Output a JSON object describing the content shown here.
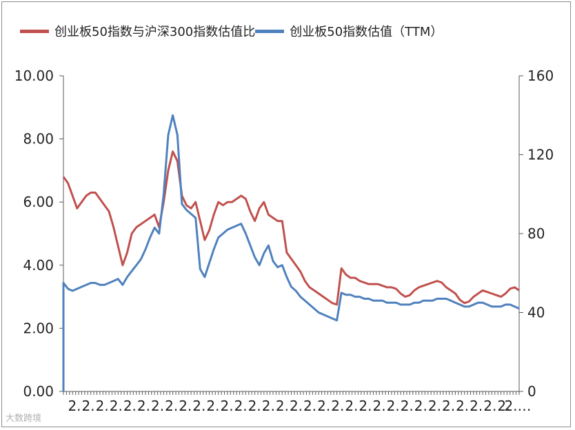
{
  "chart_data": {
    "type": "line",
    "title": "",
    "legend_position": "top",
    "grid": false,
    "x_tick_labels": [
      "2.",
      "2.",
      "2.",
      "2.",
      "2.",
      "2.",
      "2.",
      "2.",
      "2.",
      "2.",
      "2.",
      "2.",
      "2.",
      "2.",
      "2.",
      "2.",
      "2.",
      "2.",
      "2.",
      "2.",
      "2.",
      "2.",
      "2.",
      "2.",
      "2.",
      "2.",
      "2.",
      "2.",
      "2.",
      "2.",
      "2.",
      "2.",
      "2.…"
    ],
    "y_left": {
      "range": [
        0,
        10
      ],
      "ticks": [
        "0.00",
        "2.00",
        "4.00",
        "6.00",
        "8.00",
        "10.00"
      ]
    },
    "y_right": {
      "range": [
        0,
        160
      ],
      "ticks": [
        "0",
        "40",
        "80",
        "120",
        "160"
      ]
    },
    "series": [
      {
        "name": "创业板50指数与沪深300指数估值比",
        "axis": "left",
        "color": "#c0504d",
        "x": [
          0,
          1,
          2,
          3,
          4,
          5,
          6,
          7,
          8,
          9,
          10,
          11,
          12,
          13,
          14,
          15,
          16,
          17,
          18,
          19,
          20,
          21,
          22,
          23,
          24,
          25,
          26,
          27,
          28,
          29,
          30,
          31,
          32,
          33,
          34,
          35,
          36,
          37,
          38,
          39,
          40,
          41,
          42,
          43,
          44,
          45,
          46,
          47,
          48,
          49,
          50,
          51,
          52,
          53,
          54,
          55,
          56,
          57,
          58,
          59,
          60,
          61,
          62,
          63,
          64,
          65,
          66,
          67,
          68,
          69,
          70,
          71,
          72,
          73,
          74,
          75,
          76,
          77,
          78,
          79,
          80,
          81,
          82,
          83,
          84,
          85,
          86,
          87,
          88,
          89,
          90,
          91,
          92,
          93,
          94,
          95,
          96,
          97,
          98,
          99,
          100
        ],
        "values": [
          6.8,
          6.6,
          6.2,
          5.8,
          6.0,
          6.2,
          6.3,
          6.3,
          6.1,
          5.9,
          5.7,
          5.2,
          4.6,
          4.0,
          4.4,
          5.0,
          5.2,
          5.3,
          5.4,
          5.5,
          5.6,
          5.2,
          6.0,
          7.0,
          7.6,
          7.3,
          6.2,
          5.9,
          5.8,
          6.0,
          5.4,
          4.8,
          5.1,
          5.6,
          6.0,
          5.9,
          6.0,
          6.0,
          6.1,
          6.2,
          6.1,
          5.7,
          5.4,
          5.8,
          6.0,
          5.6,
          5.5,
          5.4,
          5.4,
          4.4,
          4.2,
          4.0,
          3.8,
          3.5,
          3.3,
          3.2,
          3.1,
          3.0,
          2.9,
          2.8,
          2.75,
          3.9,
          3.7,
          3.6,
          3.6,
          3.5,
          3.45,
          3.4,
          3.4,
          3.4,
          3.35,
          3.3,
          3.3,
          3.25,
          3.1,
          3.0,
          3.05,
          3.2,
          3.3,
          3.35,
          3.4,
          3.45,
          3.5,
          3.45,
          3.3,
          3.2,
          3.1,
          2.9,
          2.8,
          2.85,
          3.0,
          3.1,
          3.2,
          3.15,
          3.1,
          3.05,
          3.0,
          3.1,
          3.25,
          3.3,
          3.2
        ]
      },
      {
        "name": "创业板50指数估值（TTM）",
        "axis": "right",
        "color": "#4f81bd",
        "x": [
          0,
          1,
          2,
          3,
          4,
          5,
          6,
          7,
          8,
          9,
          10,
          11,
          12,
          13,
          14,
          15,
          16,
          17,
          18,
          19,
          20,
          21,
          22,
          23,
          24,
          25,
          26,
          27,
          28,
          29,
          30,
          31,
          32,
          33,
          34,
          35,
          36,
          37,
          38,
          39,
          40,
          41,
          42,
          43,
          44,
          45,
          46,
          47,
          48,
          49,
          50,
          51,
          52,
          53,
          54,
          55,
          56,
          57,
          58,
          59,
          60,
          61,
          62,
          63,
          64,
          65,
          66,
          67,
          68,
          69,
          70,
          71,
          72,
          73,
          74,
          75,
          76,
          77,
          78,
          79,
          80,
          81,
          82,
          83,
          84,
          85,
          86,
          87,
          88,
          89,
          90,
          91,
          92,
          93,
          94,
          95,
          96,
          97,
          98,
          99,
          100
        ],
        "values": [
          55,
          52,
          51,
          52,
          53,
          54,
          55,
          55,
          54,
          54,
          55,
          56,
          57,
          54,
          58,
          61,
          64,
          67,
          72,
          78,
          83,
          80,
          100,
          130,
          140,
          130,
          95,
          92,
          90,
          88,
          62,
          58,
          65,
          72,
          78,
          80,
          82,
          83,
          84,
          85,
          80,
          74,
          68,
          64,
          70,
          74,
          66,
          63,
          64,
          58,
          53,
          51,
          48,
          46,
          44,
          42,
          40,
          39,
          38,
          37,
          36,
          50,
          49,
          49,
          48,
          48,
          47,
          47,
          46,
          46,
          46,
          45,
          45,
          45,
          44,
          44,
          44,
          45,
          45,
          46,
          46,
          46,
          47,
          47,
          47,
          46,
          45,
          44,
          43,
          43,
          44,
          45,
          45,
          44,
          43,
          43,
          43,
          44,
          44,
          43,
          42
        ]
      }
    ]
  },
  "watermark": "大数跨境"
}
